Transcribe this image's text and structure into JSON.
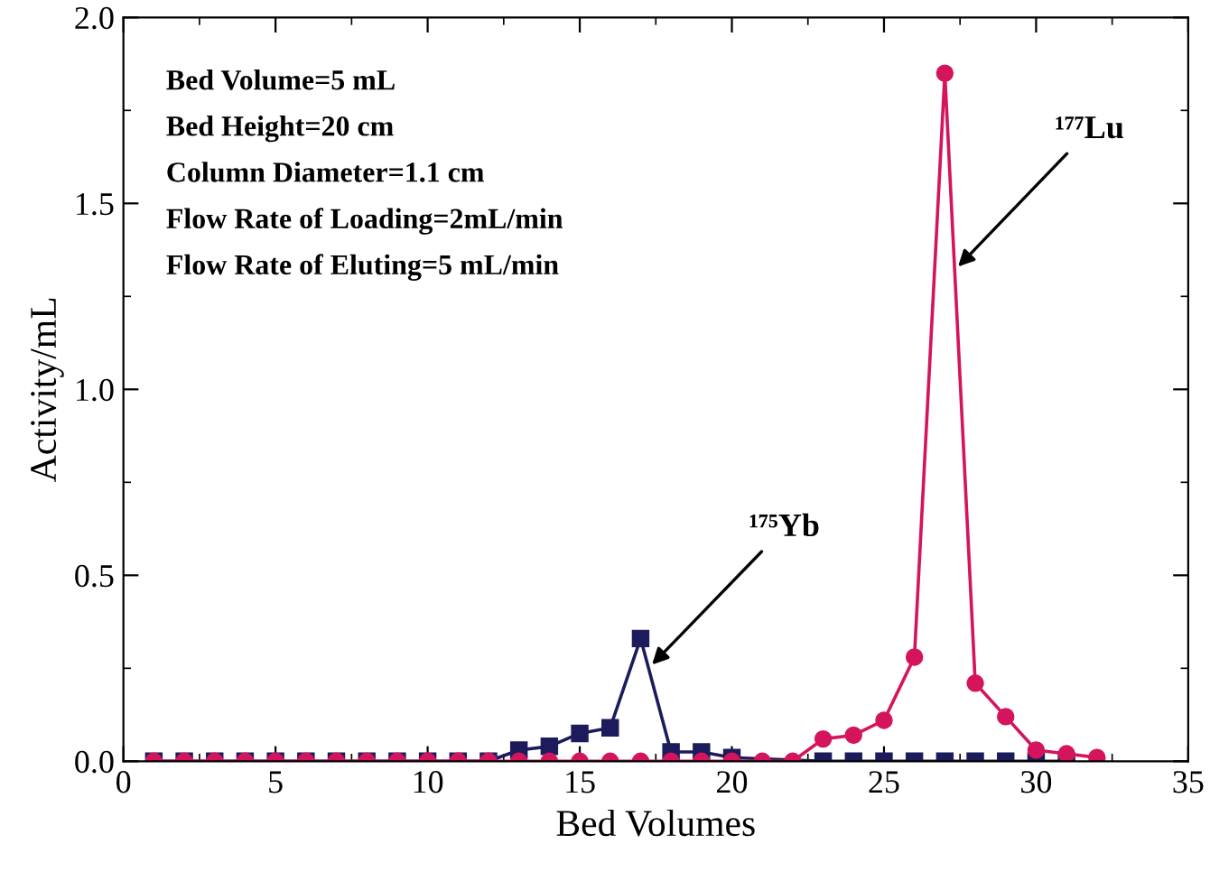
{
  "chart_data": {
    "type": "line",
    "xlabel": "Bed Volumes",
    "ylabel": "Activity/mL",
    "xlim": [
      0,
      35
    ],
    "xticks": [
      0,
      5,
      10,
      15,
      20,
      25,
      30,
      35
    ],
    "ylim": [
      0,
      2.0
    ],
    "yticks": [
      {
        "value": 0,
        "label": "0.0"
      },
      0.5,
      {
        "value": 1,
        "label": "1.0"
      },
      1.5,
      {
        "value": 2,
        "label": "2.0"
      }
    ],
    "series": [
      {
        "color": "#1c1c5c",
        "marker": "square",
        "x": [
          1,
          2,
          3,
          4,
          5,
          6,
          7,
          8,
          9,
          10,
          11,
          12,
          13,
          14,
          15,
          16,
          17,
          18,
          19,
          20,
          23,
          24,
          25,
          26,
          27,
          28,
          29,
          30,
          31
        ],
        "values": [
          0,
          0,
          0,
          0,
          0,
          0,
          0,
          0,
          0,
          0,
          0,
          0,
          0.03,
          0.04,
          0.075,
          0.09,
          0.33,
          0.025,
          0.025,
          0.01,
          0,
          0,
          0,
          0,
          0,
          0,
          0,
          0,
          0
        ]
      },
      {
        "color": "#d4145c",
        "marker": "circle",
        "x": [
          1,
          2,
          3,
          4,
          5,
          6,
          7,
          8,
          9,
          10,
          11,
          12,
          13,
          14,
          15,
          16,
          17,
          18,
          19,
          20,
          21,
          22,
          23,
          24,
          25,
          26,
          27,
          28,
          29,
          30,
          31,
          32
        ],
        "values": [
          0,
          0,
          0,
          0,
          0,
          0,
          0,
          0,
          0,
          0,
          0,
          0,
          0,
          0,
          0,
          0,
          0,
          0,
          0,
          0,
          0,
          0,
          0.06,
          0.07,
          0.11,
          0.28,
          1.85,
          0.21,
          0.12,
          0.03,
          0.02,
          0.01
        ]
      }
    ],
    "annotations": [
      "Bed Volume=5 mL",
      "Bed Height=20 cm",
      "Column Diameter=1.1 cm",
      "Flow Rate of Loading=2mL/min",
      "Flow Rate of Eluting=5 mL/min",
      {
        "text": "¹⁷⁷Lu",
        "x": 27.32,
        "y": 1.32
      },
      {
        "text": "¹⁷⁵Yb",
        "x": 17.26,
        "y": 0.25
      }
    ],
    "legend": false,
    "grid": false
  }
}
